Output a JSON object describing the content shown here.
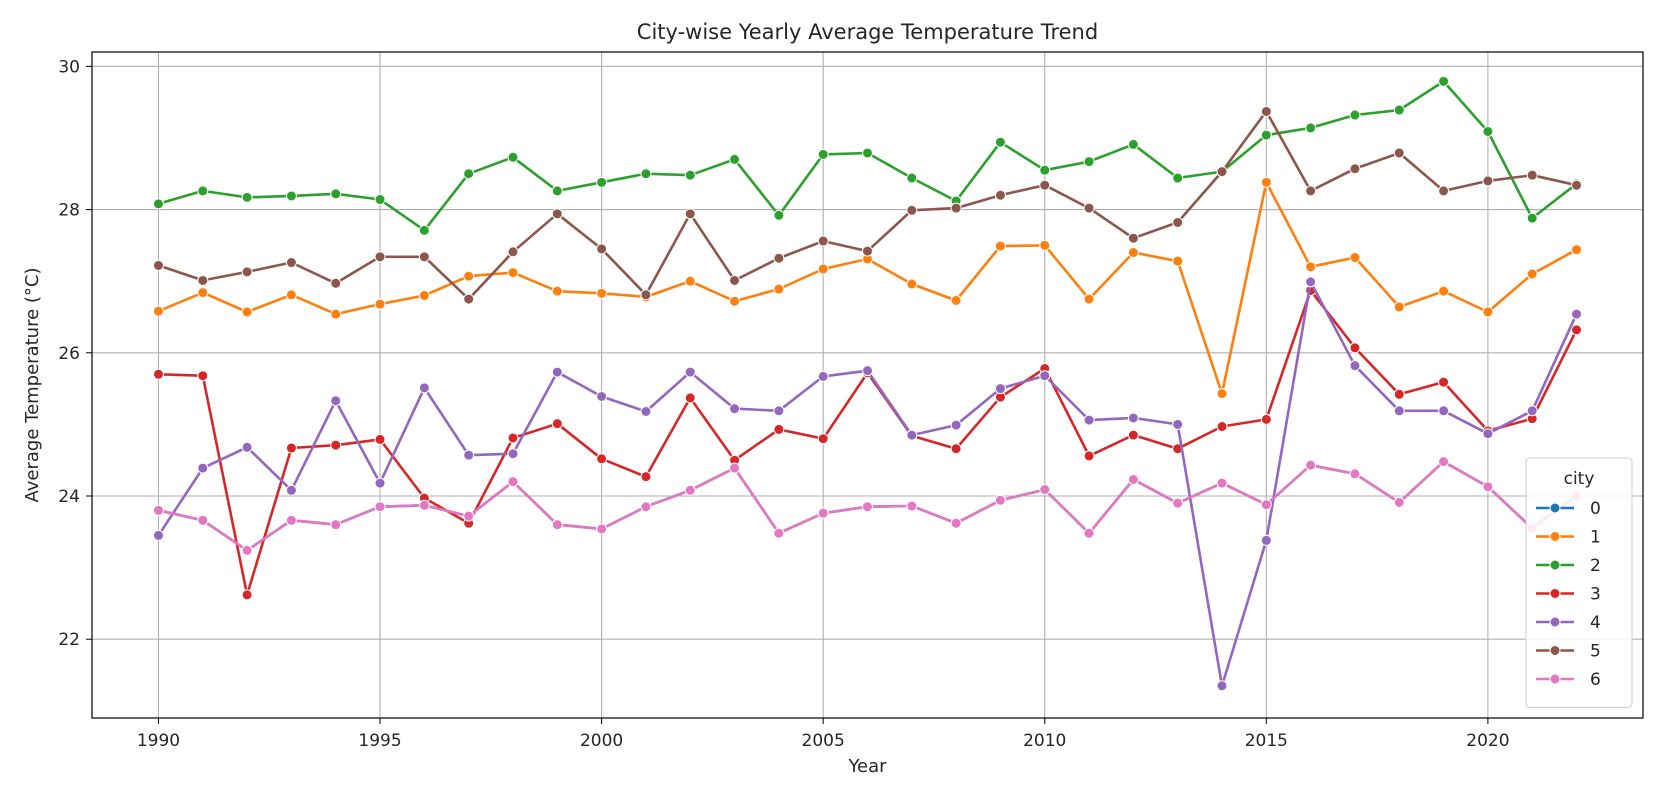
{
  "chart_data": {
    "type": "line",
    "title": "City-wise Yearly Average Temperature Trend",
    "xlabel": "Year",
    "ylabel": "Average Temperature (°C)",
    "xlim": [
      1988.5,
      2023.5
    ],
    "ylim": [
      20.9,
      30.2
    ],
    "x_ticks": [
      1990,
      1995,
      2000,
      2005,
      2010,
      2015,
      2020
    ],
    "y_ticks": [
      22,
      24,
      26,
      28,
      30
    ],
    "grid": true,
    "legend_title": "city",
    "legend_position": "lower-right",
    "x": [
      1990,
      1991,
      1992,
      1993,
      1994,
      1995,
      1996,
      1997,
      1998,
      1999,
      2000,
      2001,
      2002,
      2003,
      2004,
      2005,
      2006,
      2007,
      2008,
      2009,
      2010,
      2011,
      2012,
      2013,
      2014,
      2015,
      2016,
      2017,
      2018,
      2019,
      2020,
      2021,
      2022
    ],
    "series": [
      {
        "name": "0",
        "color": "#1f77b4",
        "values": [
          23.8,
          23.66,
          23.24,
          23.66,
          23.6,
          23.85,
          23.87,
          23.72,
          24.2,
          23.6,
          23.54,
          23.85,
          24.08,
          24.39,
          23.48,
          23.76,
          23.85,
          23.86,
          23.62,
          23.94,
          24.09,
          23.48,
          24.23,
          23.9,
          24.18,
          23.88,
          24.43,
          24.31,
          23.91,
          24.48,
          24.13,
          23.55,
          24.0
        ]
      },
      {
        "name": "1",
        "color": "#ff7f0e",
        "values": [
          26.58,
          26.84,
          26.57,
          26.81,
          26.54,
          26.68,
          26.8,
          27.07,
          27.12,
          26.86,
          26.83,
          26.78,
          27.0,
          26.72,
          26.89,
          27.17,
          27.31,
          26.96,
          26.73,
          27.49,
          27.5,
          26.75,
          27.4,
          27.28,
          25.43,
          28.38,
          27.2,
          27.33,
          26.64,
          26.86,
          26.57,
          27.1,
          27.44
        ]
      },
      {
        "name": "2",
        "color": "#2ca02c",
        "values": [
          28.08,
          28.26,
          28.17,
          28.19,
          28.22,
          28.14,
          27.71,
          28.5,
          28.73,
          28.26,
          28.38,
          28.5,
          28.48,
          28.7,
          27.92,
          28.77,
          28.79,
          28.44,
          28.12,
          28.94,
          28.55,
          28.67,
          28.91,
          28.44,
          28.53,
          29.04,
          29.14,
          29.32,
          29.39,
          29.79,
          29.09,
          27.88,
          28.36
        ]
      },
      {
        "name": "3",
        "color": "#d62728",
        "values": [
          25.7,
          25.68,
          22.62,
          24.67,
          24.71,
          24.79,
          23.97,
          23.62,
          24.81,
          25.01,
          24.52,
          24.27,
          25.37,
          24.5,
          24.93,
          24.8,
          25.72,
          24.84,
          24.66,
          25.38,
          25.78,
          24.56,
          24.85,
          24.66,
          24.97,
          25.07,
          26.87,
          26.07,
          25.42,
          25.59,
          24.91,
          25.08,
          26.32
        ]
      },
      {
        "name": "4",
        "color": "#9467bd",
        "values": [
          23.45,
          24.39,
          24.68,
          24.08,
          25.33,
          24.18,
          25.51,
          24.57,
          24.59,
          25.73,
          25.39,
          25.18,
          25.73,
          25.22,
          25.19,
          25.67,
          25.75,
          24.85,
          24.99,
          25.5,
          25.68,
          25.06,
          25.09,
          25.0,
          21.35,
          23.38,
          26.99,
          25.82,
          25.19,
          25.19,
          24.87,
          25.19,
          26.54
        ]
      },
      {
        "name": "5",
        "color": "#8c564b",
        "values": [
          27.22,
          27.01,
          27.13,
          27.26,
          26.97,
          27.34,
          27.34,
          26.75,
          27.41,
          27.94,
          27.45,
          26.81,
          27.94,
          27.01,
          27.32,
          27.56,
          27.42,
          27.99,
          28.02,
          28.2,
          28.34,
          28.02,
          27.6,
          27.82,
          28.53,
          29.37,
          28.26,
          28.57,
          28.79,
          28.26,
          28.4,
          28.48,
          28.34
        ]
      },
      {
        "name": "6",
        "color": "#e377c2",
        "values": [
          23.8,
          23.66,
          23.24,
          23.66,
          23.6,
          23.85,
          23.87,
          23.72,
          24.2,
          23.6,
          23.54,
          23.85,
          24.08,
          24.39,
          23.48,
          23.76,
          23.85,
          23.86,
          23.62,
          23.94,
          24.09,
          23.48,
          24.23,
          23.9,
          24.18,
          23.88,
          24.43,
          24.31,
          23.91,
          24.48,
          24.13,
          23.55,
          24.0
        ]
      }
    ]
  }
}
